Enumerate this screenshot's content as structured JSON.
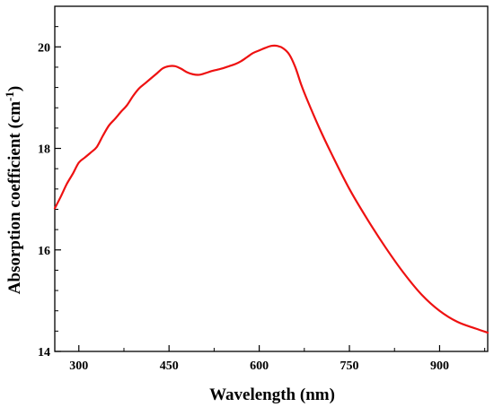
{
  "chart_data": {
    "type": "line",
    "xlabel": "Wavelength (nm)",
    "ylabel_main": "Absorption coefficient (cm",
    "ylabel_sup": "-1",
    "ylabel_close": ")",
    "xlim": [
      260,
      980
    ],
    "ylim": [
      14,
      20.8
    ],
    "x_ticks": [
      300,
      450,
      600,
      750,
      900
    ],
    "y_ticks": [
      14,
      16,
      18,
      20
    ],
    "x_tick_labels": [
      "300",
      "450",
      "600",
      "750",
      "900"
    ],
    "y_tick_labels": [
      "14",
      "16",
      "18",
      "20"
    ],
    "grid": false,
    "legend": "none",
    "series": [
      {
        "color": "#ee1111",
        "x": [
          260,
          270,
          280,
          290,
          300,
          310,
          320,
          330,
          340,
          350,
          360,
          370,
          380,
          390,
          400,
          410,
          420,
          430,
          440,
          450,
          460,
          470,
          480,
          490,
          500,
          510,
          520,
          530,
          540,
          550,
          560,
          570,
          580,
          590,
          600,
          610,
          620,
          630,
          640,
          650,
          660,
          670,
          680,
          700,
          720,
          750,
          780,
          810,
          840,
          870,
          900,
          930,
          960,
          980
        ],
        "y": [
          16.82,
          17.05,
          17.3,
          17.5,
          17.72,
          17.82,
          17.92,
          18.03,
          18.25,
          18.45,
          18.58,
          18.72,
          18.85,
          19.03,
          19.18,
          19.28,
          19.38,
          19.48,
          19.58,
          19.62,
          19.62,
          19.57,
          19.5,
          19.46,
          19.45,
          19.48,
          19.52,
          19.55,
          19.58,
          19.62,
          19.66,
          19.72,
          19.8,
          19.88,
          19.93,
          19.98,
          20.02,
          20.02,
          19.97,
          19.85,
          19.6,
          19.25,
          18.95,
          18.4,
          17.9,
          17.2,
          16.6,
          16.05,
          15.55,
          15.12,
          14.8,
          14.58,
          14.45,
          14.37
        ]
      }
    ]
  }
}
